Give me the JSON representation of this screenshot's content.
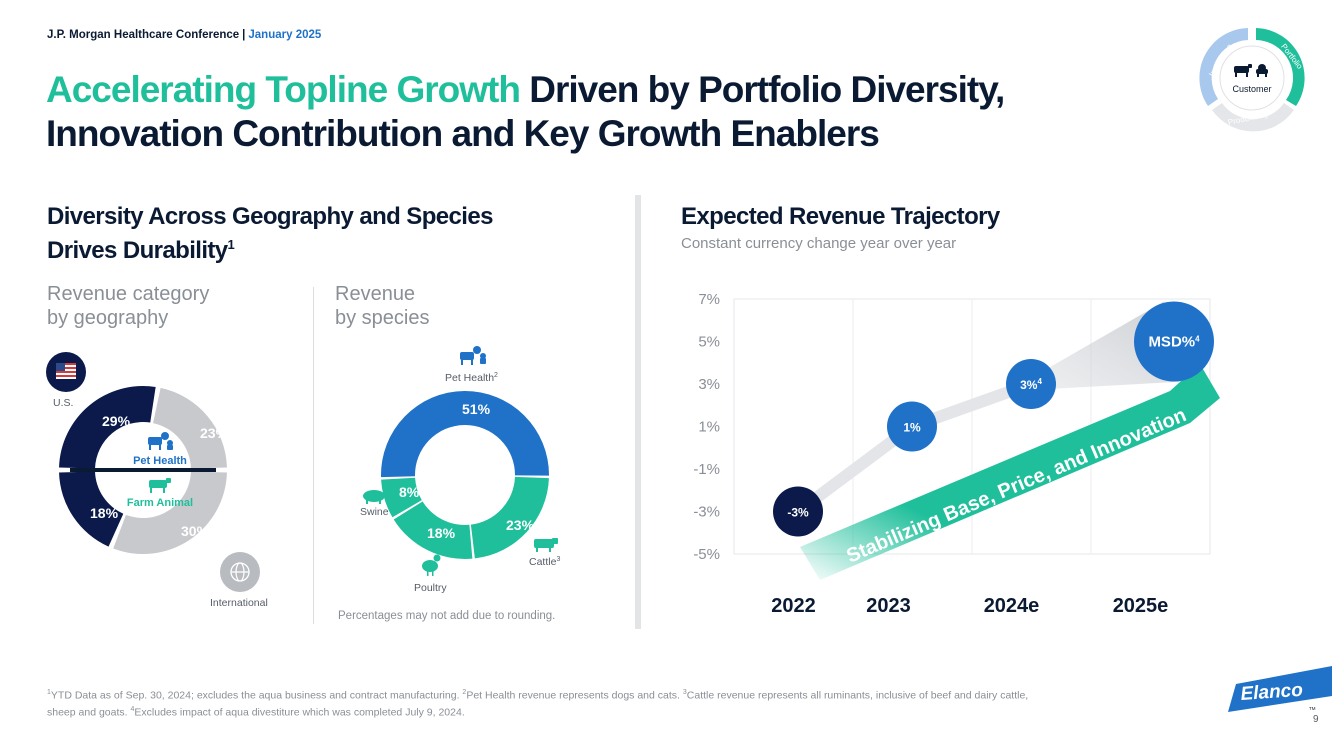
{
  "header": {
    "conference": "J.P. Morgan Healthcare Conference",
    "separator": "|",
    "date": "January 2025"
  },
  "title": {
    "highlight": "Accelerating Topline Growth",
    "rest_line1": "Driven by Portfolio Diversity,",
    "line2": "Innovation Contribution and Key Growth Enablers"
  },
  "badge": {
    "center_label": "Customer",
    "segments": [
      "Innovation",
      "Portfolio",
      "Productivity"
    ]
  },
  "left": {
    "title_line1": "Diversity Across Geography and Species",
    "title_line2": "Drives Durability",
    "title_sup": "1",
    "geo_subtitle_1": "Revenue category",
    "geo_subtitle_2": "by geography",
    "species_subtitle_1": "Revenue",
    "species_subtitle_2": "by species",
    "rounding_note": "Percentages may not add due to rounding."
  },
  "right": {
    "title": "Expected Revenue Trajectory",
    "subtitle": "Constant currency change year over year",
    "arrow_label": "Stabilizing Base, Price, and Innovation"
  },
  "chart_data": [
    {
      "type": "pie",
      "variant": "donut",
      "title": "Revenue category by geography",
      "rings": [
        {
          "name": "U.S.",
          "segments": [
            {
              "label": "Pet Health",
              "value": 29
            },
            {
              "label": "Farm Animal",
              "value": 18
            }
          ]
        },
        {
          "name": "International",
          "segments": [
            {
              "label": "Pet Health",
              "value": 23
            },
            {
              "label": "Farm Animal",
              "value": 30
            }
          ]
        }
      ],
      "labels": {
        "us": "U.S.",
        "international": "International",
        "pet_health": "Pet Health",
        "farm_animal": "Farm Animal",
        "us_pet": "29%",
        "intl_pet": "23%",
        "us_farm": "18%",
        "intl_farm": "30%"
      }
    },
    {
      "type": "pie",
      "variant": "donut",
      "title": "Revenue by species",
      "categories": [
        "Pet Health",
        "Cattle",
        "Poultry",
        "Swine"
      ],
      "values": [
        51,
        23,
        18,
        8
      ],
      "colors": [
        "#1f72c8",
        "#1fbf9b",
        "#1fbf9b",
        "#1fbf9b"
      ],
      "labels": {
        "pet_health": "Pet Health",
        "pet_health_sup": "2",
        "cattle": "Cattle",
        "cattle_sup": "3",
        "poultry": "Poultry",
        "swine": "Swine",
        "v_pet": "51%",
        "v_cattle": "23%",
        "v_poultry": "18%",
        "v_swine": "8%"
      }
    },
    {
      "type": "scatter",
      "title": "Expected Revenue Trajectory",
      "subtitle": "Constant currency change year over year",
      "categories": [
        "2022",
        "2023",
        "2024e",
        "2025e"
      ],
      "values": [
        -3,
        1,
        3,
        5
      ],
      "point_labels": [
        "-3%",
        "1%",
        "3%",
        "MSD%"
      ],
      "point_sups": [
        "",
        "",
        "4",
        "4"
      ],
      "point_colors": [
        "#0b1a4a",
        "#1f72c8",
        "#1f72c8",
        "#1f72c8"
      ],
      "yticks": [
        7,
        5,
        3,
        1,
        -1,
        -3,
        -5
      ],
      "ytick_labels": [
        "7%",
        "5%",
        "3%",
        "1%",
        "-1%",
        "-3%",
        "-5%"
      ],
      "ylim": [
        -5,
        7
      ],
      "grid": true
    }
  ],
  "footnote": {
    "s1": "1",
    "t1": "YTD Data as of Sep. 30, 2024; excludes the aqua business and contract manufacturing. ",
    "s2": "2",
    "t2": "Pet Health revenue represents dogs and cats. ",
    "s3": "3",
    "t3": "Cattle revenue represents all ruminants, inclusive of beef and dairy cattle, sheep and goats. ",
    "s4": "4",
    "t4": "Excludes impact of aqua divestiture which was completed July 9, 2024."
  },
  "logo": {
    "text": "Elanco",
    "tm": "TM"
  },
  "page_number": "9",
  "colors": {
    "navy": "#0b1a4a",
    "blue": "#1f72c8",
    "teal": "#1fbf9b",
    "gray": "#c8c9cc",
    "text": "#0b1a33"
  }
}
